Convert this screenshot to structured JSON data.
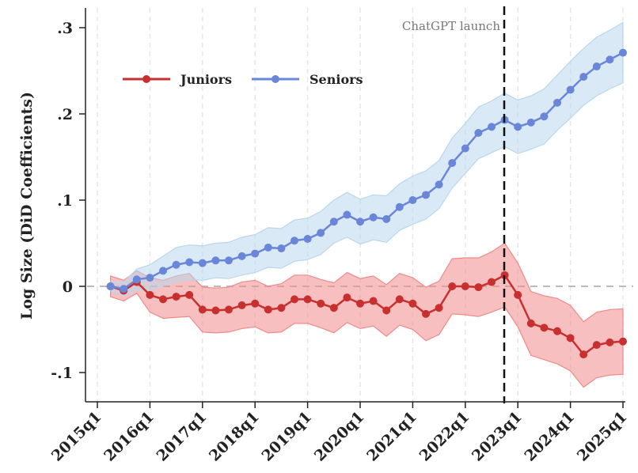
{
  "chart_data": {
    "type": "line",
    "title": "",
    "xlabel": "",
    "ylabel": "Log Size (DiD Coefficients)",
    "ylim": [
      -0.13,
      0.32
    ],
    "yticks": [
      -0.1,
      0,
      0.1,
      0.2,
      0.3
    ],
    "ytick_labels": [
      "-.1",
      "0",
      ".1",
      ".2",
      ".3"
    ],
    "xtick_labels": [
      "2015q1",
      "2016q1",
      "2017q1",
      "2018q1",
      "2019q1",
      "2020q1",
      "2021q1",
      "2022q1",
      "2023q1",
      "2024q1",
      "2025q1"
    ],
    "x": [
      "2015q2",
      "2015q3",
      "2015q4",
      "2016q1",
      "2016q2",
      "2016q3",
      "2016q4",
      "2017q1",
      "2017q2",
      "2017q3",
      "2017q4",
      "2018q1",
      "2018q2",
      "2018q3",
      "2018q4",
      "2019q1",
      "2019q2",
      "2019q3",
      "2019q4",
      "2020q1",
      "2020q2",
      "2020q3",
      "2020q4",
      "2021q1",
      "2021q2",
      "2021q3",
      "2021q4",
      "2022q1",
      "2022q2",
      "2022q3",
      "2022q4",
      "2023q1",
      "2023q2",
      "2023q3",
      "2023q4",
      "2024q1",
      "2024q2",
      "2024q3",
      "2024q4",
      "2025q1"
    ],
    "legend_position": "top-left",
    "grid": "vertical dashed at year ticks",
    "series": [
      {
        "name": "Juniors",
        "color": "#c8302f",
        "band_color": "#f08a8a",
        "values": [
          0,
          -0.005,
          0.005,
          -0.01,
          -0.015,
          -0.012,
          -0.01,
          -0.027,
          -0.028,
          -0.027,
          -0.022,
          -0.02,
          -0.027,
          -0.025,
          -0.015,
          -0.015,
          -0.02,
          -0.025,
          -0.013,
          -0.02,
          -0.017,
          -0.028,
          -0.015,
          -0.02,
          -0.032,
          -0.025,
          0.0,
          0.0,
          -0.001,
          0.005,
          0.013,
          -0.01,
          -0.043,
          -0.048,
          -0.052,
          -0.06,
          -0.079,
          -0.068,
          -0.065,
          -0.064
        ],
        "ci_halfwidth": [
          0.012,
          0.012,
          0.013,
          0.02,
          0.022,
          0.024,
          0.025,
          0.026,
          0.026,
          0.026,
          0.027,
          0.027,
          0.027,
          0.028,
          0.028,
          0.028,
          0.028,
          0.029,
          0.029,
          0.029,
          0.029,
          0.03,
          0.03,
          0.03,
          0.031,
          0.031,
          0.032,
          0.033,
          0.034,
          0.035,
          0.037,
          0.037,
          0.037,
          0.037,
          0.038,
          0.038,
          0.038,
          0.038,
          0.038,
          0.038
        ]
      },
      {
        "name": "Seniors",
        "color": "#6a86d8",
        "band_color": "#b9d7ec",
        "values": [
          0,
          -0.003,
          0.008,
          0.01,
          0.018,
          0.025,
          0.028,
          0.027,
          0.03,
          0.03,
          0.035,
          0.038,
          0.045,
          0.044,
          0.053,
          0.055,
          0.062,
          0.075,
          0.083,
          0.075,
          0.08,
          0.078,
          0.092,
          0.1,
          0.106,
          0.118,
          0.143,
          0.16,
          0.178,
          0.185,
          0.193,
          0.185,
          0.19,
          0.197,
          0.213,
          0.228,
          0.243,
          0.255,
          0.263,
          0.271
        ],
        "ci_halfwidth": [
          0.005,
          0.008,
          0.012,
          0.015,
          0.017,
          0.02,
          0.02,
          0.02,
          0.02,
          0.021,
          0.022,
          0.022,
          0.023,
          0.023,
          0.024,
          0.024,
          0.025,
          0.025,
          0.026,
          0.026,
          0.026,
          0.027,
          0.027,
          0.028,
          0.028,
          0.028,
          0.029,
          0.029,
          0.03,
          0.03,
          0.031,
          0.031,
          0.031,
          0.032,
          0.032,
          0.033,
          0.033,
          0.034,
          0.034,
          0.035
        ]
      }
    ],
    "annotations": [
      {
        "text": "ChatGPT launch",
        "at": "2022q4",
        "style": "vertical dashed line"
      }
    ]
  }
}
